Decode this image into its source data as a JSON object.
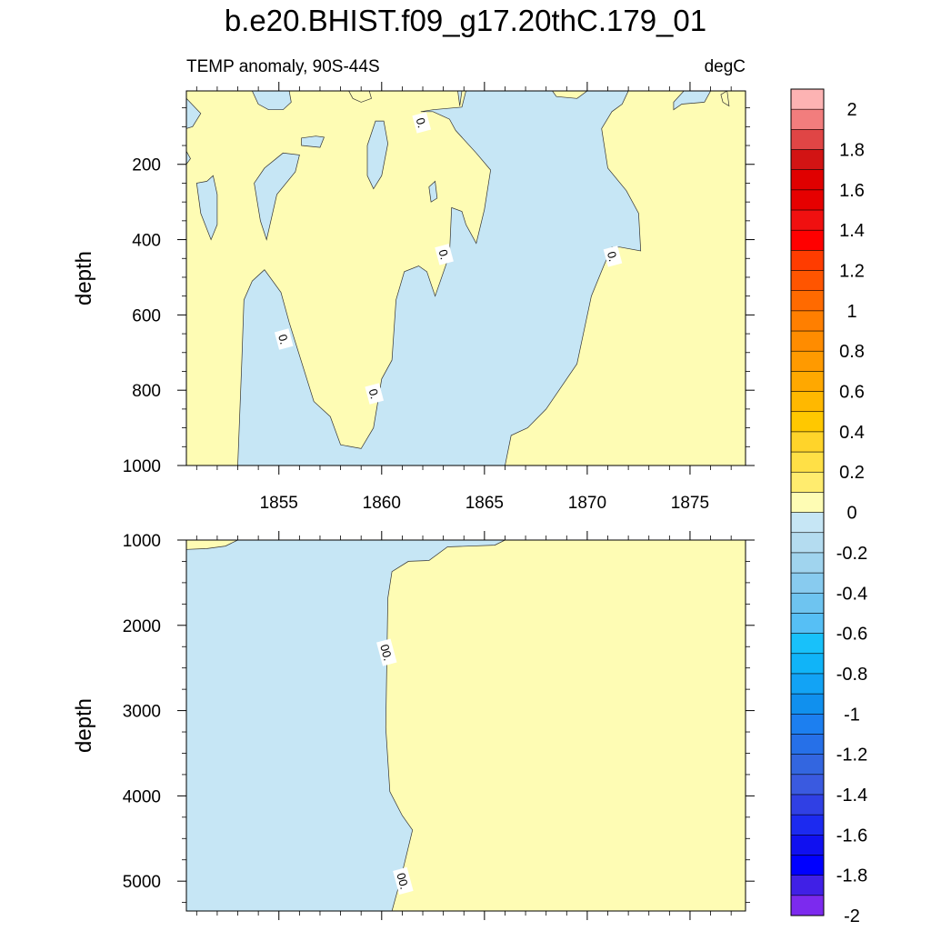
{
  "header": {
    "title": "b.e20.BHIST.f09_g17.20thC.179_01",
    "subtitle_left": "TEMP anomaly, 90S-44S",
    "subtitle_right": "degC"
  },
  "colors": {
    "positive_fill": "#fefcb4",
    "negative_fill": "#c6e6f5"
  },
  "chart_data": [
    {
      "type": "heatmap",
      "panel": "upper",
      "xlabel": "",
      "ylabel": "depth",
      "xlim": [
        1850.5,
        1877.7
      ],
      "ylim": [
        1000,
        5
      ],
      "x_ticks": [
        1855,
        1860,
        1865,
        1870,
        1875
      ],
      "x_tick_labels": [
        "1855",
        "1860",
        "1865",
        "1870",
        "1875"
      ],
      "y_ticks": [
        200,
        400,
        600,
        800,
        1000
      ],
      "y_tick_labels": [
        "200",
        "400",
        "600",
        "800",
        "1000"
      ],
      "contour_level": 0,
      "contour_labels": [
        {
          "text": "0.",
          "x": 1861.9,
          "y": 90
        },
        {
          "text": "0.",
          "x": 1863.0,
          "y": 440
        },
        {
          "text": "0.",
          "x": 1871.2,
          "y": 445
        },
        {
          "text": "0.",
          "x": 1855.2,
          "y": 665
        },
        {
          "text": "0.",
          "x": 1859.6,
          "y": 810
        }
      ],
      "negative_regions": [
        [
          [
            1850.5,
            25
          ],
          [
            1851.2,
            65
          ],
          [
            1850.8,
            100
          ],
          [
            1850.5,
            105
          ]
        ],
        [
          [
            1850.5,
            165
          ],
          [
            1850.7,
            185
          ],
          [
            1850.5,
            200
          ]
        ],
        [
          [
            1853.7,
            5
          ],
          [
            1854.0,
            40
          ],
          [
            1854.5,
            55
          ],
          [
            1855.2,
            55
          ],
          [
            1855.6,
            35
          ],
          [
            1855.5,
            5
          ]
        ],
        [
          [
            1851.5,
            245
          ],
          [
            1851.8,
            230
          ],
          [
            1852.0,
            280
          ],
          [
            1852.0,
            360
          ],
          [
            1851.7,
            400
          ],
          [
            1851.2,
            330
          ],
          [
            1851.0,
            250
          ]
        ],
        [
          [
            1853.8,
            250
          ],
          [
            1854.3,
            210
          ],
          [
            1855.2,
            170
          ],
          [
            1856.0,
            175
          ],
          [
            1855.8,
            220
          ],
          [
            1854.9,
            280
          ],
          [
            1854.4,
            400
          ],
          [
            1854.1,
            350
          ]
        ],
        [
          [
            1856.1,
            130
          ],
          [
            1856.8,
            125
          ],
          [
            1857.2,
            128
          ],
          [
            1857.0,
            155
          ],
          [
            1856.1,
            150
          ]
        ],
        [
          [
            1859.3,
            150
          ],
          [
            1859.7,
            85
          ],
          [
            1860.1,
            85
          ],
          [
            1860.3,
            145
          ],
          [
            1860.0,
            230
          ],
          [
            1859.6,
            265
          ],
          [
            1859.3,
            230
          ]
        ],
        [
          [
            1862.3,
            260
          ],
          [
            1862.6,
            245
          ],
          [
            1862.7,
            290
          ],
          [
            1862.4,
            300
          ]
        ],
        [
          [
            1863.7,
            5
          ],
          [
            1863.9,
            5
          ],
          [
            1863.8,
            45
          ]
        ],
        [
          [
            1861.9,
            60
          ],
          [
            1862.5,
            60
          ],
          [
            1863.3,
            80
          ],
          [
            1863.6,
            110
          ],
          [
            1864.6,
            170
          ],
          [
            1865.3,
            215
          ],
          [
            1865.0,
            320
          ],
          [
            1864.6,
            410
          ],
          [
            1864.1,
            360
          ],
          [
            1863.9,
            325
          ],
          [
            1863.4,
            315
          ],
          [
            1863.3,
            440
          ],
          [
            1862.6,
            550
          ],
          [
            1862.2,
            485
          ],
          [
            1861.8,
            470
          ],
          [
            1861.1,
            485
          ],
          [
            1860.7,
            560
          ],
          [
            1860.5,
            720
          ],
          [
            1860.0,
            770
          ],
          [
            1859.6,
            900
          ],
          [
            1859.0,
            955
          ],
          [
            1858.0,
            945
          ],
          [
            1857.5,
            870
          ],
          [
            1856.7,
            830
          ],
          [
            1855.5,
            620
          ],
          [
            1855.1,
            540
          ],
          [
            1854.3,
            480
          ],
          [
            1853.7,
            510
          ],
          [
            1853.3,
            560
          ],
          [
            1853.2,
            720
          ],
          [
            1853.0,
            1000
          ],
          [
            1866.0,
            1000
          ],
          [
            1866.3,
            920
          ],
          [
            1867.1,
            900
          ],
          [
            1868.0,
            850
          ],
          [
            1869.5,
            730
          ],
          [
            1870.2,
            550
          ],
          [
            1870.8,
            470
          ],
          [
            1871.2,
            420
          ],
          [
            1871.6,
            420
          ],
          [
            1872.6,
            430
          ],
          [
            1872.5,
            330
          ],
          [
            1871.9,
            270
          ],
          [
            1871.0,
            210
          ],
          [
            1870.7,
            105
          ],
          [
            1871.2,
            60
          ],
          [
            1871.7,
            40
          ],
          [
            1872.0,
            5
          ],
          [
            1864.1,
            5
          ],
          [
            1863.9,
            48
          ],
          [
            1862.5,
            55
          ]
        ],
        [
          [
            1874.2,
            55
          ],
          [
            1874.6,
            40
          ],
          [
            1875.7,
            35
          ],
          [
            1876.0,
            5
          ],
          [
            1874.7,
            5
          ],
          [
            1874.2,
            35
          ]
        ]
      ],
      "positive_regions": [
        [
          [
            1858.4,
            5
          ],
          [
            1859.4,
            5
          ],
          [
            1859.5,
            25
          ],
          [
            1859.0,
            35
          ],
          [
            1858.6,
            25
          ]
        ],
        [
          [
            1868.3,
            5
          ],
          [
            1870.0,
            5
          ],
          [
            1869.5,
            25
          ],
          [
            1868.5,
            20
          ]
        ],
        [
          [
            1876.5,
            15
          ],
          [
            1876.8,
            5
          ],
          [
            1876.9,
            45
          ],
          [
            1876.6,
            35
          ]
        ]
      ]
    },
    {
      "type": "heatmap",
      "panel": "lower",
      "xlabel": "",
      "ylabel": "depth",
      "xlim": [
        1850.5,
        1877.7
      ],
      "ylim": [
        5350,
        1000
      ],
      "x_ticks": [
        1855,
        1860,
        1865,
        1870,
        1875
      ],
      "y_ticks": [
        1000,
        2000,
        3000,
        4000,
        5000
      ],
      "y_tick_labels": [
        "1000",
        "2000",
        "3000",
        "4000",
        "5000"
      ],
      "contour_level": 0,
      "contour_labels": [
        {
          "text": "00.",
          "x": 1860.2,
          "y": 2320
        },
        {
          "text": "00.",
          "x": 1861.0,
          "y": 5000
        }
      ],
      "negative_regions": [
        [
          [
            1850.5,
            1110
          ],
          [
            1851.5,
            1100
          ],
          [
            1852.4,
            1070
          ],
          [
            1853.0,
            1000
          ],
          [
            1866.0,
            1000
          ],
          [
            1865.5,
            1060
          ],
          [
            1863.2,
            1080
          ],
          [
            1862.3,
            1240
          ],
          [
            1861.3,
            1250
          ],
          [
            1860.5,
            1370
          ],
          [
            1860.3,
            1680
          ],
          [
            1860.2,
            3200
          ],
          [
            1860.4,
            3950
          ],
          [
            1861.0,
            4230
          ],
          [
            1861.5,
            4400
          ],
          [
            1860.9,
            5000
          ],
          [
            1860.5,
            5350
          ],
          [
            1850.5,
            5350
          ]
        ]
      ],
      "positive_regions": []
    }
  ],
  "colorbar": {
    "position": "right",
    "tick_labels": [
      "2",
      "1.8",
      "1.6",
      "1.4",
      "1.2",
      "1",
      "0.8",
      "0.6",
      "0.4",
      "0.2",
      "0",
      "-0.2",
      "-0.4",
      "-0.6",
      "-0.8",
      "-1",
      "-1.2",
      "-1.4",
      "-1.6",
      "-1.8",
      "-2"
    ],
    "colors": [
      "#fdb3b3",
      "#f27d7d",
      "#e04545",
      "#d21414",
      "#e00000",
      "#e60000",
      "#f01010",
      "#ff0000",
      "#ff3c00",
      "#ff5500",
      "#ff6a00",
      "#ff7f00",
      "#ff8c00",
      "#ff9a00",
      "#ffa800",
      "#ffb800",
      "#ffc800",
      "#ffd42a",
      "#ffe046",
      "#ffec6e",
      "#fefcb4",
      "#c6e6f5",
      "#b4dcf0",
      "#a0d4ee",
      "#88cbef",
      "#6ec4f0",
      "#56bff5",
      "#18c1fa",
      "#10b4f8",
      "#12a3f5",
      "#1090ee",
      "#1c7ff0",
      "#2670e8",
      "#3366e0",
      "#3a5ae0",
      "#3040e4",
      "#1c2af0",
      "#1010f0",
      "#0000ff",
      "#4020e6",
      "#7c2aee"
    ]
  }
}
